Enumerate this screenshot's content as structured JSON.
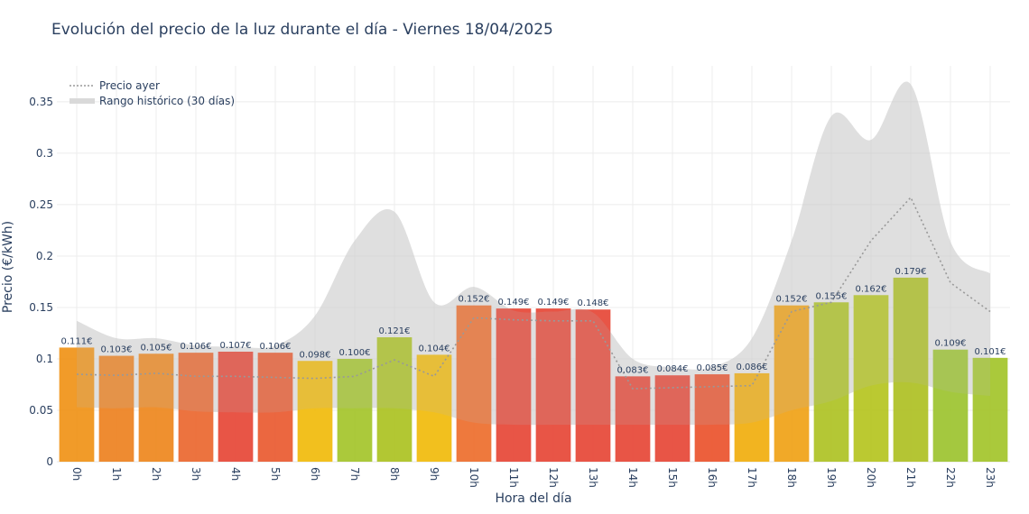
{
  "chart_data": {
    "type": "bar",
    "title": "Evolución del precio de la luz durante el día - Viernes 18/04/2025",
    "xlabel": "Hora del día",
    "ylabel": "Precio (€/kWh)",
    "ylim": [
      0,
      0.385
    ],
    "yticks": [
      0,
      0.05,
      0.1,
      0.15,
      0.2,
      0.25,
      0.3,
      0.35
    ],
    "ytick_labels": [
      "0",
      "0.05",
      "0.1",
      "0.15",
      "0.2",
      "0.25",
      "0.3",
      "0.35"
    ],
    "grid": true,
    "legend_position": "top-left",
    "categories": [
      "0h",
      "1h",
      "2h",
      "3h",
      "4h",
      "5h",
      "6h",
      "7h",
      "8h",
      "9h",
      "10h",
      "11h",
      "12h",
      "13h",
      "14h",
      "15h",
      "16h",
      "17h",
      "18h",
      "19h",
      "20h",
      "21h",
      "22h",
      "23h"
    ],
    "values": [
      0.111,
      0.103,
      0.105,
      0.106,
      0.107,
      0.106,
      0.098,
      0.1,
      0.121,
      0.104,
      0.152,
      0.149,
      0.149,
      0.148,
      0.083,
      0.084,
      0.085,
      0.086,
      0.152,
      0.155,
      0.162,
      0.179,
      0.109,
      0.101
    ],
    "value_labels": [
      "0.111€",
      "0.103€",
      "0.105€",
      "0.106€",
      "0.107€",
      "0.106€",
      "0.098€",
      "0.100€",
      "0.121€",
      "0.104€",
      "0.152€",
      "0.149€",
      "0.149€",
      "0.148€",
      "0.083€",
      "0.084€",
      "0.085€",
      "0.086€",
      "0.152€",
      "0.155€",
      "0.162€",
      "0.179€",
      "0.109€",
      "0.101€"
    ],
    "bar_colors": [
      "#f0961e",
      "#ed8526",
      "#ee8a24",
      "#eb6b35",
      "#e74c3c",
      "#ea5f36",
      "#f1bd12",
      "#a7c630",
      "#aec428",
      "#f1bd12",
      "#ed7233",
      "#e74c3c",
      "#e74c3c",
      "#e74c3c",
      "#e74c3c",
      "#e74c3c",
      "#eb5733",
      "#f1b014",
      "#f0a41c",
      "#b0c42a",
      "#b7c626",
      "#b0c229",
      "#9fc535",
      "#a5c630"
    ],
    "series": [
      {
        "name": "Precio ayer",
        "style": "dotted",
        "color": "#999999",
        "values": [
          0.085,
          0.084,
          0.086,
          0.083,
          0.083,
          0.082,
          0.081,
          0.083,
          0.099,
          0.083,
          0.14,
          0.138,
          0.137,
          0.137,
          0.071,
          0.072,
          0.073,
          0.074,
          0.146,
          0.155,
          0.215,
          0.257,
          0.174,
          0.146
        ]
      },
      {
        "name": "Rango histórico (30 días)",
        "type": "area",
        "color": "#d3d3d3",
        "upper": [
          0.137,
          0.12,
          0.12,
          0.113,
          0.112,
          0.113,
          0.142,
          0.215,
          0.243,
          0.155,
          0.17,
          0.147,
          0.146,
          0.145,
          0.1,
          0.092,
          0.092,
          0.12,
          0.215,
          0.336,
          0.313,
          0.367,
          0.214,
          0.183
        ],
        "lower": [
          0.053,
          0.052,
          0.053,
          0.049,
          0.048,
          0.048,
          0.052,
          0.052,
          0.052,
          0.048,
          0.038,
          0.036,
          0.036,
          0.036,
          0.036,
          0.036,
          0.036,
          0.038,
          0.05,
          0.059,
          0.074,
          0.077,
          0.068,
          0.064
        ]
      }
    ]
  }
}
